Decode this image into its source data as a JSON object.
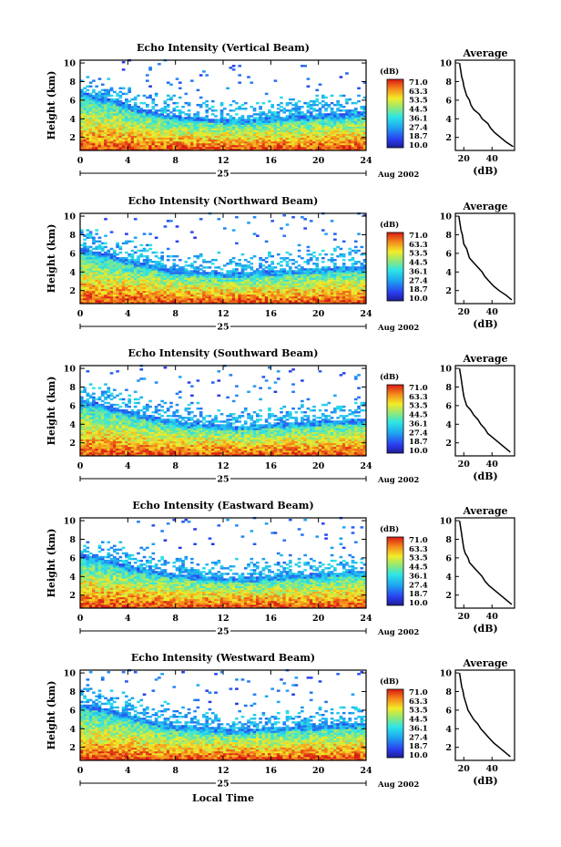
{
  "figure": {
    "xlabel": "Local Time",
    "day_label": "25",
    "date_label": "Aug 2002"
  },
  "chart_data": [
    {
      "type": "heatmap",
      "title": "Echo Intensity (Vertical Beam)",
      "ylabel": "Height (km)",
      "xlim": [
        0,
        24
      ],
      "ylim": [
        0.6,
        10.3
      ],
      "x_ticks": [
        0,
        4,
        8,
        12,
        16,
        20,
        24
      ],
      "y_ticks": [
        2,
        4,
        6,
        8,
        10
      ],
      "colorbar": {
        "unit": "(dB)",
        "ticks": [
          "71.0",
          "63.3",
          "53.5",
          "44.5",
          "36.1",
          "27.4",
          "18.7",
          "10.0"
        ],
        "range": [
          10.0,
          71.0
        ]
      },
      "cloud_top_km": [
        6.8,
        6.5,
        6.2,
        5.9,
        5.4,
        5.0,
        4.8,
        4.4,
        4.3,
        4.1,
        4.0,
        4.0,
        3.9,
        3.8,
        3.9,
        4.0,
        4.1,
        4.2,
        4.3,
        4.3,
        4.4,
        4.5,
        4.5,
        4.6,
        4.7
      ],
      "average": {
        "title": "Average",
        "xlabel": "(dB)",
        "xlim": [
          14,
          56
        ],
        "x_ticks": [
          20,
          40
        ],
        "y_ticks": [
          2,
          4,
          6,
          8,
          10
        ],
        "height_km": [
          1.0,
          1.5,
          2.0,
          2.5,
          3.0,
          3.5,
          4.0,
          4.5,
          5.0,
          5.5,
          6.0,
          6.5,
          7.0,
          7.5,
          8.0,
          8.5,
          9.0,
          9.5,
          10.0
        ],
        "db": [
          55,
          50,
          46,
          42,
          39,
          37,
          33,
          31,
          27,
          25,
          24,
          22,
          21,
          20,
          19.5,
          18.5,
          18,
          17.5,
          17
        ]
      }
    },
    {
      "type": "heatmap",
      "title": "Echo Intensity (Northward Beam)",
      "ylabel": "Height (km)",
      "xlim": [
        0,
        24
      ],
      "ylim": [
        0.6,
        10.3
      ],
      "x_ticks": [
        0,
        4,
        8,
        12,
        16,
        20,
        24
      ],
      "y_ticks": [
        2,
        4,
        6,
        8,
        10
      ],
      "colorbar": {
        "unit": "(dB)",
        "ticks": [
          "71.0",
          "63.3",
          "53.5",
          "44.5",
          "36.1",
          "27.4",
          "18.7",
          "10.0"
        ],
        "range": [
          10.0,
          71.0
        ]
      },
      "cloud_top_km": [
        6.5,
        6.2,
        5.9,
        5.6,
        5.2,
        4.9,
        4.7,
        4.4,
        4.2,
        4.1,
        4.0,
        3.9,
        3.8,
        3.8,
        3.9,
        4.0,
        4.1,
        4.1,
        4.2,
        4.3,
        4.3,
        4.4,
        4.5,
        4.5,
        4.6
      ],
      "average": {
        "title": "Average",
        "xlabel": "(dB)",
        "xlim": [
          14,
          56
        ],
        "x_ticks": [
          20,
          40
        ],
        "y_ticks": [
          2,
          4,
          6,
          8,
          10
        ],
        "height_km": [
          1.0,
          1.5,
          2.0,
          2.5,
          3.0,
          3.5,
          4.0,
          4.5,
          5.0,
          5.5,
          6.0,
          6.5,
          7.0,
          7.5,
          8.0,
          8.5,
          9.0,
          9.5,
          10.0
        ],
        "db": [
          54,
          50,
          45,
          41,
          38,
          35,
          33,
          30,
          27,
          24,
          23,
          22,
          20,
          19.5,
          19,
          18,
          17.5,
          17,
          16.5
        ]
      }
    },
    {
      "type": "heatmap",
      "title": "Echo Intensity (Southward Beam)",
      "ylabel": "Height (km)",
      "xlim": [
        0,
        24
      ],
      "ylim": [
        0.6,
        10.3
      ],
      "x_ticks": [
        0,
        4,
        8,
        12,
        16,
        20,
        24
      ],
      "y_ticks": [
        2,
        4,
        6,
        8,
        10
      ],
      "colorbar": {
        "unit": "(dB)",
        "ticks": [
          "71.0",
          "63.3",
          "53.5",
          "44.5",
          "36.1",
          "27.4",
          "18.7",
          "10.0"
        ],
        "range": [
          10.0,
          71.0
        ]
      },
      "cloud_top_km": [
        6.6,
        6.3,
        6.0,
        5.7,
        5.3,
        5.0,
        4.8,
        4.5,
        4.3,
        4.1,
        4.0,
        3.9,
        3.8,
        3.7,
        3.8,
        3.9,
        4.0,
        4.1,
        4.2,
        4.2,
        4.3,
        4.4,
        4.4,
        4.5,
        4.6
      ],
      "average": {
        "title": "Average",
        "xlabel": "(dB)",
        "xlim": [
          14,
          56
        ],
        "x_ticks": [
          20,
          40
        ],
        "y_ticks": [
          2,
          4,
          6,
          8,
          10
        ],
        "height_km": [
          1.0,
          1.5,
          2.0,
          2.5,
          3.0,
          3.5,
          4.0,
          4.5,
          5.0,
          5.5,
          6.0,
          6.5,
          7.0,
          7.5,
          8.0,
          8.5,
          9.0,
          9.5,
          10.0
        ],
        "db": [
          53,
          49,
          45,
          41,
          37,
          35,
          32,
          30,
          27,
          25,
          22,
          21,
          20,
          19.5,
          19,
          18.5,
          18,
          17.5,
          17
        ]
      }
    },
    {
      "type": "heatmap",
      "title": "Echo Intensity (Eastward Beam)",
      "ylabel": "Height (km)",
      "xlim": [
        0,
        24
      ],
      "ylim": [
        0.6,
        10.3
      ],
      "x_ticks": [
        0,
        4,
        8,
        12,
        16,
        20,
        24
      ],
      "y_ticks": [
        2,
        4,
        6,
        8,
        10
      ],
      "colorbar": {
        "unit": "(dB)",
        "ticks": [
          "71.0",
          "63.3",
          "53.5",
          "44.5",
          "36.1",
          "27.4",
          "18.7",
          "10.0"
        ],
        "range": [
          10.0,
          71.0
        ]
      },
      "cloud_top_km": [
        6.4,
        6.1,
        5.8,
        5.5,
        5.1,
        4.8,
        4.6,
        4.4,
        4.2,
        4.1,
        4.0,
        3.9,
        3.8,
        3.8,
        3.9,
        3.9,
        4.0,
        4.1,
        4.2,
        4.2,
        4.3,
        4.4,
        4.4,
        4.5,
        4.5
      ],
      "average": {
        "title": "Average",
        "xlabel": "(dB)",
        "xlim": [
          14,
          56
        ],
        "x_ticks": [
          20,
          40
        ],
        "y_ticks": [
          2,
          4,
          6,
          8,
          10
        ],
        "height_km": [
          1.0,
          1.5,
          2.0,
          2.5,
          3.0,
          3.5,
          4.0,
          4.5,
          5.0,
          5.5,
          6.0,
          6.5,
          7.0,
          7.5,
          8.0,
          8.5,
          9.0,
          9.5,
          10.0
        ],
        "db": [
          54,
          50,
          46,
          42,
          38,
          35,
          33,
          30,
          27,
          24,
          23,
          21,
          20,
          19.5,
          19,
          18.5,
          18,
          17.5,
          17
        ]
      }
    },
    {
      "type": "heatmap",
      "title": "Echo Intensity (Westward Beam)",
      "ylabel": "Height (km)",
      "xlim": [
        0,
        24
      ],
      "ylim": [
        0.6,
        10.3
      ],
      "x_ticks": [
        0,
        4,
        8,
        12,
        16,
        20,
        24
      ],
      "y_ticks": [
        2,
        4,
        6,
        8,
        10
      ],
      "colorbar": {
        "unit": "(dB)",
        "ticks": [
          "71.0",
          "63.3",
          "53.5",
          "44.5",
          "36.1",
          "27.4",
          "18.7",
          "10.0"
        ],
        "range": [
          10.0,
          71.0
        ]
      },
      "cloud_top_km": [
        6.6,
        6.4,
        6.1,
        5.8,
        5.4,
        5.1,
        4.8,
        4.5,
        4.3,
        4.2,
        4.1,
        4.0,
        3.9,
        3.8,
        3.9,
        4.0,
        4.1,
        4.1,
        4.2,
        4.3,
        4.3,
        4.4,
        4.5,
        4.5,
        4.6
      ],
      "average": {
        "title": "Average",
        "xlabel": "(dB)",
        "xlim": [
          14,
          56
        ],
        "x_ticks": [
          20,
          40
        ],
        "y_ticks": [
          2,
          4,
          6,
          8,
          10
        ],
        "height_km": [
          1.0,
          1.5,
          2.0,
          2.5,
          3.0,
          3.5,
          4.0,
          4.5,
          5.0,
          5.5,
          6.0,
          6.5,
          7.0,
          7.5,
          8.0,
          8.5,
          9.0,
          9.5,
          10.0
        ],
        "db": [
          53,
          49,
          45,
          41,
          38,
          35,
          32,
          30,
          27,
          25,
          23,
          22,
          21,
          20,
          19.5,
          18.5,
          18,
          17.5,
          17
        ]
      }
    }
  ]
}
